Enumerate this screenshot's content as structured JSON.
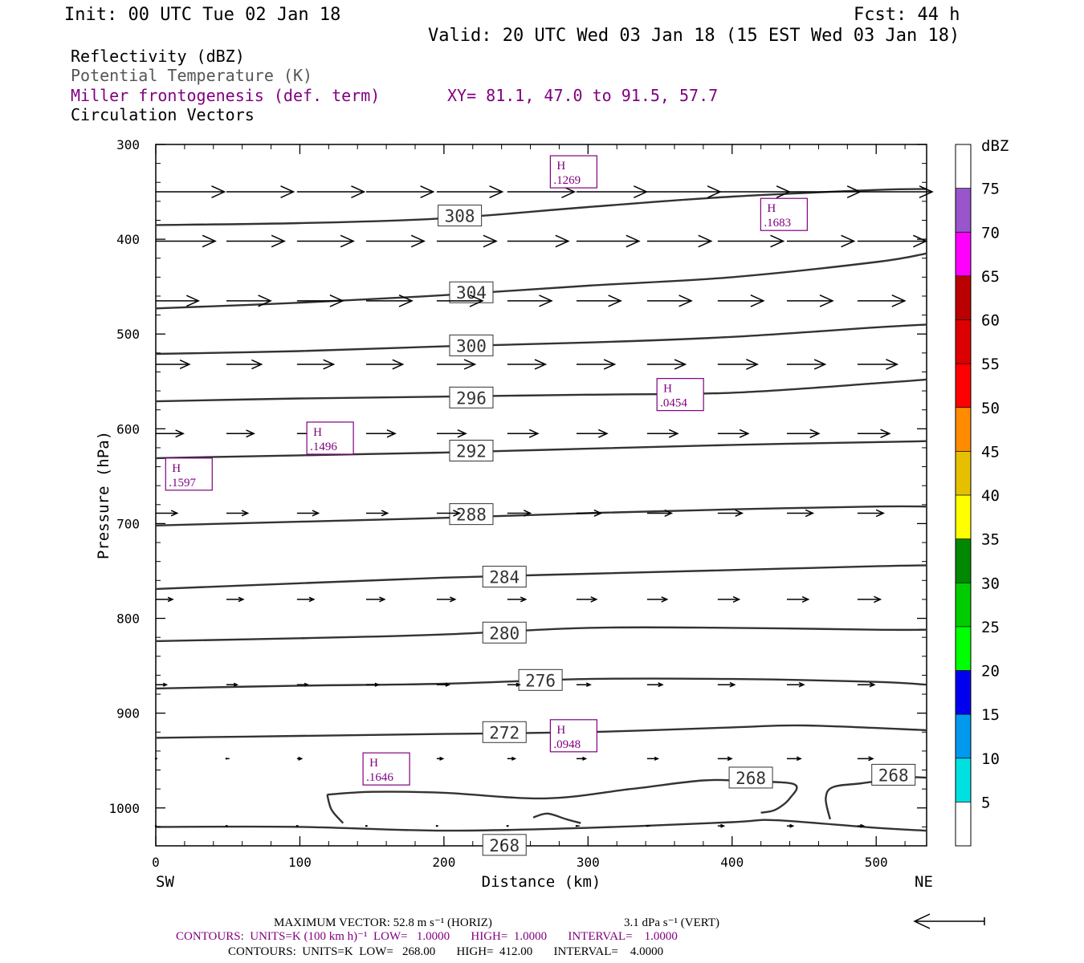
{
  "header": {
    "init": "Init: 00 UTC Tue 02 Jan 18",
    "fcst": "Fcst:   44 h",
    "valid": "Valid: 20 UTC Wed 03 Jan 18 (15 EST Wed 03 Jan 18)",
    "fields": [
      {
        "text": "Reflectivity (dBZ)",
        "color": "#000000"
      },
      {
        "text": "Potential Temperature (K)",
        "color": "#555555"
      },
      {
        "text": "Miller frontogenesis (def. term)",
        "color": "#800080"
      },
      {
        "text": "Circulation Vectors",
        "color": "#000000"
      }
    ],
    "xy": "XY=  81.1, 47.0 to  91.5, 57.7"
  },
  "chart_data": {
    "type": "cross-section",
    "xlabel": "Distance (km)",
    "ylabel": "Pressure (hPa)",
    "xlim": [
      0,
      535
    ],
    "ylim": [
      1040,
      300
    ],
    "x_ticks": [
      0,
      100,
      200,
      300,
      400,
      500
    ],
    "y_ticks": [
      300,
      400,
      500,
      600,
      700,
      800,
      900,
      1000
    ],
    "left_end_label": "SW",
    "right_end_label": "NE",
    "isentropes": [
      {
        "label": "308",
        "label_at": [
          211,
          375
        ],
        "points": [
          [
            0,
            385
          ],
          [
            100,
            383
          ],
          [
            200,
            378
          ],
          [
            300,
            366
          ],
          [
            400,
            355
          ],
          [
            500,
            348
          ],
          [
            535,
            347
          ]
        ]
      },
      {
        "label": "304",
        "label_at": [
          219,
          456
        ],
        "points": [
          [
            0,
            473
          ],
          [
            100,
            467
          ],
          [
            200,
            459
          ],
          [
            300,
            449
          ],
          [
            400,
            440
          ],
          [
            500,
            424
          ],
          [
            535,
            415
          ]
        ]
      },
      {
        "label": "300",
        "label_at": [
          219,
          512
        ],
        "points": [
          [
            0,
            521
          ],
          [
            100,
            518
          ],
          [
            200,
            513
          ],
          [
            300,
            509
          ],
          [
            400,
            503
          ],
          [
            500,
            493
          ],
          [
            535,
            490
          ]
        ]
      },
      {
        "label": "296",
        "label_at": [
          219,
          567
        ],
        "points": [
          [
            0,
            571
          ],
          [
            100,
            568
          ],
          [
            200,
            566
          ],
          [
            300,
            564
          ],
          [
            400,
            562
          ],
          [
            500,
            552
          ],
          [
            535,
            548
          ]
        ]
      },
      {
        "label": "292",
        "label_at": [
          219,
          623
        ],
        "points": [
          [
            0,
            631
          ],
          [
            100,
            628
          ],
          [
            200,
            625
          ],
          [
            300,
            621
          ],
          [
            400,
            617
          ],
          [
            500,
            614
          ],
          [
            535,
            613
          ]
        ]
      },
      {
        "label": "288",
        "label_at": [
          219,
          690
        ],
        "points": [
          [
            0,
            702
          ],
          [
            100,
            698
          ],
          [
            200,
            694
          ],
          [
            300,
            689
          ],
          [
            400,
            685
          ],
          [
            500,
            682
          ],
          [
            535,
            682
          ]
        ]
      },
      {
        "label": "284",
        "label_at": [
          242,
          756
        ],
        "points": [
          [
            0,
            769
          ],
          [
            100,
            763
          ],
          [
            200,
            757
          ],
          [
            300,
            753
          ],
          [
            400,
            749
          ],
          [
            500,
            745
          ],
          [
            535,
            744
          ]
        ]
      },
      {
        "label": "280",
        "label_at": [
          242,
          815
        ],
        "points": [
          [
            0,
            824
          ],
          [
            100,
            821
          ],
          [
            200,
            817
          ],
          [
            300,
            810
          ],
          [
            400,
            810
          ],
          [
            500,
            812
          ],
          [
            535,
            812
          ]
        ]
      },
      {
        "label": "276",
        "label_at": [
          267,
          865
        ],
        "points": [
          [
            0,
            874
          ],
          [
            100,
            871
          ],
          [
            200,
            869
          ],
          [
            300,
            864
          ],
          [
            400,
            864
          ],
          [
            500,
            867
          ],
          [
            535,
            870
          ]
        ]
      },
      {
        "label": "272",
        "label_at": [
          242,
          920
        ],
        "points": [
          [
            0,
            926
          ],
          [
            100,
            924
          ],
          [
            200,
            922
          ],
          [
            300,
            920
          ],
          [
            400,
            915
          ],
          [
            450,
            913
          ],
          [
            535,
            918
          ]
        ]
      },
      {
        "label": "268",
        "label_at": [
          242,
          1039
        ],
        "points": [
          [
            0,
            1020
          ],
          [
            100,
            1020
          ],
          [
            200,
            1024
          ],
          [
            300,
            1021
          ],
          [
            400,
            1015
          ],
          [
            430,
            1013
          ],
          [
            500,
            1021
          ],
          [
            535,
            1024
          ]
        ]
      },
      {
        "label": "268",
        "label_at": [
          413,
          968
        ],
        "points": [
          [
            119,
            986
          ],
          [
            150,
            983
          ],
          [
            200,
            984
          ],
          [
            270,
            990
          ],
          [
            330,
            980
          ],
          [
            380,
            971
          ],
          [
            410,
            972
          ],
          [
            443,
            975
          ],
          [
            440,
            990
          ],
          [
            430,
            1002
          ],
          [
            420,
            1005
          ]
        ]
      },
      {
        "label": "268",
        "label_at": [
          512,
          965
        ],
        "points": [
          [
            468,
            1012
          ],
          [
            465,
            990
          ],
          [
            470,
            978
          ],
          [
            490,
            974
          ],
          [
            520,
            968
          ],
          [
            535,
            968
          ]
        ]
      },
      {
        "label": "",
        "label_at": null,
        "points": [
          [
            119,
            986
          ],
          [
            122,
            1002
          ],
          [
            130,
            1016
          ]
        ]
      },
      {
        "label": "",
        "label_at": null,
        "points": [
          [
            262,
            1010
          ],
          [
            272,
            1006
          ],
          [
            285,
            1012
          ],
          [
            295,
            1016
          ]
        ]
      }
    ],
    "frontogenesis_maxima": [
      {
        "label": "H",
        "value": ".1269",
        "x": 290,
        "p": 328
      },
      {
        "label": "H",
        "value": ".1683",
        "x": 436,
        "p": 373
      },
      {
        "label": "H",
        "value": ".0454",
        "x": 364,
        "p": 563
      },
      {
        "label": "H",
        "value": ".1496",
        "x": 121,
        "p": 609
      },
      {
        "label": "H",
        "value": ".1597",
        "x": 23,
        "p": 647
      },
      {
        "label": "H",
        "value": ".0948",
        "x": 290,
        "p": 923
      },
      {
        "label": "H",
        "value": ".1646",
        "x": 160,
        "p": 958
      }
    ],
    "vector_rows": [
      {
        "p": 350,
        "x": [
          0,
          49,
          98,
          146,
          195,
          244,
          292,
          341,
          390,
          438,
          487
        ],
        "u": [
          45,
          44,
          44,
          44,
          43,
          44,
          46,
          48,
          47,
          48,
          49
        ],
        "w": [
          0,
          0,
          0,
          0,
          0,
          0,
          0,
          0,
          0,
          0,
          0
        ]
      },
      {
        "p": 402,
        "x": [
          0,
          49,
          98,
          146,
          195,
          244,
          292,
          341,
          390,
          438,
          487
        ],
        "u": [
          39,
          38,
          37,
          38,
          39,
          40,
          41,
          42,
          43,
          44,
          45
        ],
        "w": [
          0,
          0,
          0,
          0,
          0,
          0,
          0,
          0,
          0,
          0,
          0
        ]
      },
      {
        "p": 465,
        "x": [
          0,
          49,
          98,
          146,
          195,
          244,
          292,
          341,
          390,
          438,
          487
        ],
        "u": [
          28,
          29,
          30,
          30,
          30,
          29,
          29,
          29,
          30,
          30,
          31
        ],
        "w": [
          0,
          0,
          0,
          0,
          0,
          0,
          0,
          0,
          0,
          0,
          0
        ]
      },
      {
        "p": 532,
        "x": [
          0,
          49,
          98,
          146,
          195,
          244,
          292,
          341,
          390,
          438,
          487
        ],
        "u": [
          22,
          23,
          24,
          24,
          25,
          25,
          25,
          25,
          26,
          25,
          26
        ],
        "w": [
          0,
          0,
          0,
          0,
          0,
          0,
          0,
          0,
          0,
          0,
          0
        ]
      },
      {
        "p": 605,
        "x": [
          0,
          49,
          98,
          146,
          195,
          244,
          292,
          341,
          390,
          438,
          487
        ],
        "u": [
          18,
          18,
          19,
          19,
          19,
          20,
          20,
          20,
          20,
          21,
          21
        ],
        "w": [
          0,
          0,
          0,
          0,
          0,
          0,
          0,
          0,
          0,
          0,
          0
        ]
      },
      {
        "p": 689,
        "x": [
          0,
          49,
          98,
          146,
          195,
          244,
          292,
          341,
          390,
          438,
          487
        ],
        "u": [
          14,
          14,
          14,
          14,
          15,
          15,
          16,
          16,
          16,
          17,
          17
        ],
        "w": [
          0,
          0,
          0,
          0,
          0,
          0,
          0,
          0,
          0,
          0,
          0
        ]
      },
      {
        "p": 780,
        "x": [
          0,
          49,
          98,
          146,
          195,
          244,
          292,
          341,
          390,
          438,
          487
        ],
        "u": [
          11,
          11,
          11,
          12,
          12,
          12,
          13,
          13,
          14,
          14,
          15
        ],
        "w": [
          0,
          0,
          0,
          0,
          0,
          0,
          0,
          0,
          0,
          0,
          0
        ]
      },
      {
        "p": 870,
        "x": [
          0,
          49,
          98,
          146,
          195,
          244,
          292,
          341,
          390,
          438,
          487
        ],
        "u": [
          7,
          7,
          7,
          8,
          8,
          8,
          9,
          10,
          11,
          11,
          11
        ],
        "w": [
          0,
          0,
          0,
          0,
          0,
          0,
          0,
          0,
          0,
          0,
          0
        ]
      },
      {
        "p": 948,
        "x": [
          0,
          49,
          98,
          146,
          195,
          244,
          292,
          341,
          390,
          438,
          487
        ],
        "u": [
          1,
          2,
          3,
          3,
          4,
          5,
          6,
          7,
          9,
          9,
          10
        ],
        "w": [
          0,
          0,
          0,
          0,
          0,
          0,
          0,
          0,
          0,
          0,
          0
        ]
      },
      {
        "p": 1019,
        "x": [
          0,
          49,
          98,
          146,
          195,
          244,
          292,
          341,
          390,
          438,
          487
        ],
        "u": [
          0.5,
          1,
          1,
          1,
          1,
          1,
          2,
          2,
          4,
          4,
          4
        ],
        "w": [
          0,
          0,
          0,
          0,
          0,
          0,
          0,
          0,
          0,
          0,
          0
        ]
      }
    ],
    "colorbar": {
      "title": "dBZ",
      "bounds": [
        5,
        10,
        15,
        20,
        25,
        30,
        35,
        40,
        45,
        50,
        55,
        60,
        65,
        70,
        75
      ],
      "colors": [
        "#ffffff",
        "#00e0e0",
        "#0099ee",
        "#0000ee",
        "#00ff00",
        "#00cc00",
        "#008800",
        "#ffff00",
        "#e6c000",
        "#ff8c00",
        "#ff0000",
        "#dd0000",
        "#bb0000",
        "#ff00ff",
        "#9955cc",
        "#ffffff"
      ]
    }
  },
  "footer": {
    "max_vector": "MAXIMUM VECTOR:  52.8 m s⁻¹ (HORIZ)",
    "max_vert": "3.1 dPa s⁻¹ (VERT)",
    "contours1": "CONTOURS:  UNITS=K (100 km h)⁻¹  LOW=   1.0000       HIGH=  1.0000       INTERVAL=    1.0000",
    "contours2": "CONTOURS:  UNITS=K  LOW=   268.00       HIGH=  412.00       INTERVAL=    4.0000"
  }
}
